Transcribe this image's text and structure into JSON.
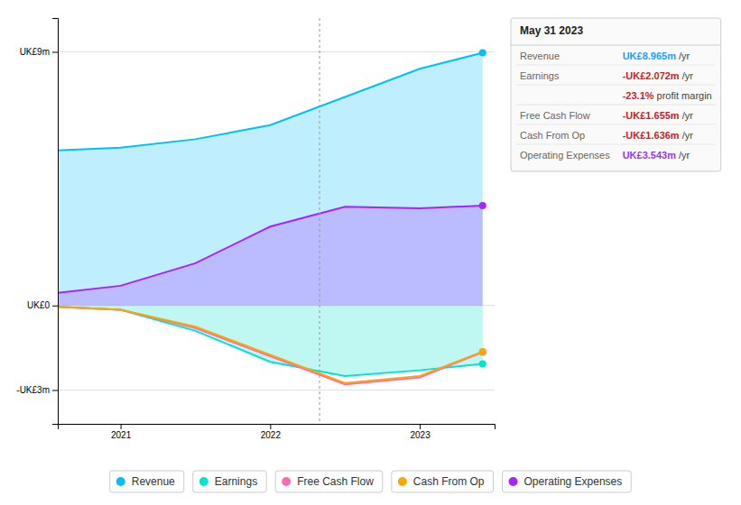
{
  "chart_data": {
    "type": "line",
    "x": [
      2020.58,
      2021.0,
      2021.5,
      2022.0,
      2022.5,
      2023.0,
      2023.42
    ],
    "xlim": [
      2020.58,
      2023.5
    ],
    "xticks": [
      2021,
      2022,
      2023
    ],
    "ylim": [
      -4.2,
      10.2
    ],
    "yticks": [
      {
        "value": -3,
        "label": "-UK£3m"
      },
      {
        "value": 0,
        "label": "UK£0"
      },
      {
        "value": 9,
        "label": "UK£9m"
      }
    ],
    "grid": true,
    "legend": "bottom",
    "series": [
      {
        "name": "Revenue",
        "type": "area",
        "color": "#00bfff",
        "values": [
          5.5,
          5.6,
          5.9,
          6.4,
          7.4,
          8.4,
          8.965
        ]
      },
      {
        "name": "Earnings",
        "type": "area",
        "color": "#00e5cc",
        "values": [
          -0.05,
          -0.15,
          -0.9,
          -2.0,
          -2.5,
          -2.3,
          -2.072
        ]
      },
      {
        "name": "Free Cash Flow",
        "type": "line",
        "color": "#ff69b4",
        "values": [
          -0.05,
          -0.15,
          -0.8,
          -1.8,
          -2.8,
          -2.55,
          -1.655
        ]
      },
      {
        "name": "Cash From Op",
        "type": "line",
        "color": "#ffa500",
        "values": [
          -0.05,
          -0.15,
          -0.75,
          -1.75,
          -2.75,
          -2.5,
          -1.636
        ]
      },
      {
        "name": "Operating Expenses",
        "type": "area",
        "color": "#aa22ff",
        "values": [
          0.45,
          0.7,
          1.5,
          2.8,
          3.5,
          3.45,
          3.543
        ]
      }
    ],
    "vertical_line_x": 2022.33,
    "info_box": {
      "title": "May 31 2023",
      "rows": [
        {
          "label": "Revenue",
          "value": "UK£8.965m",
          "suffix": " /yr",
          "color": "#1a9fff"
        },
        {
          "label": "Earnings",
          "value": "-UK£2.072m",
          "suffix": " /yr",
          "color": "#cc2222"
        },
        {
          "value": "-23.1%",
          "suffix": " profit margin",
          "color": "#cc2222"
        },
        {
          "label": "Free Cash Flow",
          "value": "-UK£1.655m",
          "suffix": " /yr",
          "color": "#cc2222"
        },
        {
          "label": "Cash From Op",
          "value": "-UK£1.636m",
          "suffix": " /yr",
          "color": "#cc2222"
        },
        {
          "label": "Operating Expenses",
          "value": "UK£3.543m",
          "suffix": " /yr",
          "color": "#9933ff"
        }
      ]
    }
  }
}
